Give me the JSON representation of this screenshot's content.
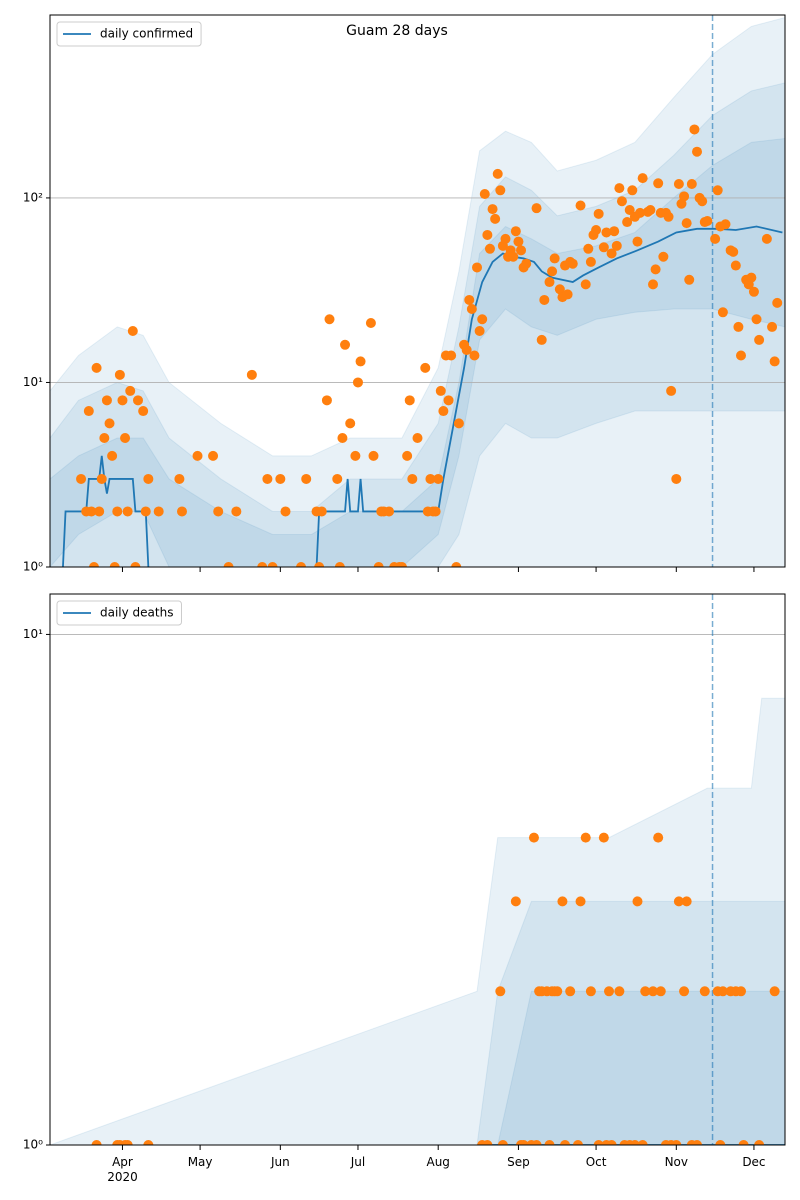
{
  "chart_data": [
    {
      "type": "line",
      "title": "Guam 28 days",
      "log_y": true,
      "grid": true,
      "legend": "upper left",
      "xlim": [
        64,
        348
      ],
      "ylim": [
        1,
        980
      ],
      "yticks": [
        {
          "value": 1,
          "label": "10⁰"
        },
        {
          "value": 10,
          "label": "10¹"
        },
        {
          "value": 100,
          "label": "10²"
        }
      ],
      "vline": 320,
      "bands": {
        "color": "#1f77b4",
        "opacity": 0.1,
        "x": [
          64,
          75,
          90,
          100,
          110,
          130,
          150,
          165,
          180,
          200,
          214,
          222,
          230,
          240,
          250,
          260,
          275,
          290,
          305,
          320,
          335,
          348
        ],
        "upper": [
          [
            9,
            14,
            20,
            18,
            10,
            6,
            4,
            4,
            5,
            5,
            12,
            40,
            180,
            230,
            200,
            140,
            160,
            200,
            350,
            600,
            850,
            950
          ],
          [
            5,
            8,
            10,
            9,
            5,
            3,
            2,
            2,
            3,
            3,
            6,
            20,
            90,
            130,
            110,
            80,
            90,
            110,
            170,
            280,
            380,
            420
          ],
          [
            3,
            4,
            5,
            5,
            3,
            2,
            1.5,
            1.5,
            2,
            2,
            3,
            10,
            50,
            70,
            60,
            50,
            55,
            65,
            100,
            150,
            200,
            210
          ]
        ],
        "lower": [
          [
            1,
            1,
            1,
            1,
            1,
            1,
            1,
            1,
            1,
            1,
            1,
            1,
            1,
            1,
            1,
            1,
            1,
            1,
            1,
            1,
            1,
            1
          ],
          [
            1,
            1,
            1,
            1,
            1,
            1,
            1,
            1,
            1,
            1,
            1,
            1.5,
            4,
            6,
            5,
            5,
            6,
            7,
            7,
            7,
            7,
            7
          ],
          [
            1,
            1.5,
            2,
            2,
            1,
            1,
            1,
            1,
            1,
            1,
            1.5,
            4,
            17,
            25,
            20,
            18,
            22,
            24,
            25,
            25,
            22,
            20
          ]
        ]
      },
      "series": [
        {
          "name": "daily confirmed",
          "color": "#1f77b4",
          "x": [
            69,
            70,
            78,
            79,
            83,
            84,
            85,
            86,
            87,
            96,
            97,
            101,
            102,
            103,
            167,
            168,
            178,
            179,
            180,
            183,
            184,
            185,
            214,
            216,
            220,
            224,
            227,
            231,
            235,
            239,
            243,
            247,
            251,
            254,
            258,
            266,
            270,
            276,
            283,
            291,
            299,
            306,
            314,
            322,
            329,
            337,
            347
          ],
          "values": [
            1,
            2,
            2,
            3,
            3,
            4,
            3,
            2.5,
            3,
            3,
            2,
            2,
            1,
            null,
            1,
            2,
            2,
            3,
            2,
            2,
            3,
            2,
            2,
            3,
            6,
            12,
            22,
            35,
            45,
            50,
            48,
            47,
            45,
            40,
            37,
            35,
            38,
            42,
            47,
            52,
            58,
            65,
            68,
            68,
            67,
            70,
            65
          ]
        }
      ],
      "scatter": {
        "color": "#ff7f0e",
        "x": [
          76,
          78,
          79,
          80,
          81,
          82,
          83,
          84,
          85,
          86,
          87,
          88,
          89,
          90,
          91,
          92,
          93,
          94,
          95,
          96,
          97,
          98,
          100,
          101,
          102,
          106,
          114,
          115,
          121,
          127,
          129,
          133,
          136,
          142,
          146,
          148,
          150,
          153,
          155,
          161,
          163,
          167,
          168,
          169,
          171,
          172,
          175,
          176,
          177,
          178,
          180,
          182,
          183,
          184,
          188,
          189,
          191,
          192,
          193,
          195,
          197,
          199,
          200,
          202,
          203,
          204,
          206,
          209,
          210,
          211,
          212,
          213,
          214,
          215,
          216,
          217,
          218,
          219,
          221,
          222,
          224,
          225,
          226,
          227,
          228,
          229,
          230,
          231,
          232,
          233,
          234,
          235,
          236,
          237,
          238,
          239,
          240,
          241,
          242,
          243,
          244,
          245,
          246,
          247,
          248,
          252,
          254,
          255,
          257,
          258,
          259,
          261,
          262,
          263,
          264,
          265,
          266,
          269,
          271,
          272,
          273,
          274,
          275,
          276,
          278,
          279,
          281,
          282,
          283,
          284,
          285,
          287,
          288,
          289,
          290,
          291,
          292,
          293,
          295,
          296,
          297,
          298,
          299,
          300,
          301,
          302,
          303,
          304,
          306,
          307,
          308,
          309,
          310,
          311,
          312,
          313,
          314,
          315,
          316,
          317,
          318,
          321,
          322,
          323,
          324,
          325,
          327,
          328,
          329,
          330,
          331,
          333,
          334,
          335,
          336,
          337,
          338,
          341,
          343,
          344,
          345
        ],
        "values": [
          3,
          2,
          7,
          2,
          1,
          12,
          2,
          3,
          5,
          8,
          6,
          4,
          1,
          2,
          11,
          8,
          5,
          2,
          9,
          19,
          1,
          8,
          7,
          2,
          3,
          2,
          3,
          2,
          4,
          4,
          2,
          1,
          2,
          11,
          1,
          3,
          1,
          3,
          2,
          1,
          3,
          2,
          1,
          2,
          8,
          22,
          3,
          1,
          5,
          16,
          6,
          4,
          10,
          13,
          21,
          4,
          1,
          2,
          2,
          2,
          1,
          1,
          1,
          4,
          8,
          3,
          5,
          12,
          2,
          3,
          2,
          2,
          3,
          9,
          7,
          14,
          8,
          14,
          1,
          6,
          16,
          15,
          28,
          25,
          14,
          42,
          19,
          22,
          105,
          63,
          53,
          87,
          77,
          135,
          110,
          55,
          60,
          48,
          52,
          48,
          66,
          58,
          52,
          42,
          44,
          88,
          17,
          28,
          35,
          40,
          47,
          32,
          29,
          43,
          30,
          45,
          44,
          91,
          34,
          53,
          45,
          63,
          67,
          82,
          54,
          65,
          50,
          66,
          55,
          113,
          96,
          74,
          86,
          110,
          79,
          58,
          83,
          128,
          84,
          86,
          34,
          41,
          120,
          83,
          48,
          83,
          79,
          9,
          3,
          119,
          93,
          102,
          73,
          36,
          119,
          235,
          178,
          100,
          96,
          74,
          75,
          60,
          110,
          70,
          24,
          72,
          52,
          51,
          43,
          20,
          14,
          36,
          34,
          37,
          31,
          22,
          17,
          60,
          20,
          13,
          27
        ]
      }
    },
    {
      "type": "line",
      "log_y": true,
      "grid": true,
      "legend": "upper left",
      "xlim": [
        64,
        348
      ],
      "ylim": [
        1,
        12
      ],
      "yticks": [
        {
          "value": 1,
          "label": "10⁰"
        },
        {
          "value": 10,
          "label": "10¹"
        }
      ],
      "xticks": [
        {
          "value": 92,
          "label": "Apr\n2020"
        },
        {
          "value": 122,
          "label": "May"
        },
        {
          "value": 153,
          "label": "Jun"
        },
        {
          "value": 183,
          "label": "Jul"
        },
        {
          "value": 214,
          "label": "Aug"
        },
        {
          "value": 245,
          "label": "Sep"
        },
        {
          "value": 275,
          "label": "Oct"
        },
        {
          "value": 306,
          "label": "Nov"
        },
        {
          "value": 336,
          "label": "Dec"
        }
      ],
      "vline": 320,
      "bands": {
        "color": "#1f77b4",
        "opacity": 0.1,
        "x": [
          64,
          229,
          237,
          250,
          280,
          318,
          335,
          339,
          348
        ],
        "upper": [
          [
            1,
            2,
            4,
            4,
            4,
            5,
            5,
            7.5,
            7.5
          ],
          [
            1,
            1,
            2,
            3,
            3,
            3,
            3,
            3,
            3
          ],
          [
            1,
            1,
            1,
            2,
            2,
            2,
            2,
            2,
            2
          ]
        ],
        "lower": [
          [
            1,
            1,
            1,
            1,
            1,
            1,
            1,
            1,
            1
          ],
          [
            1,
            1,
            1,
            1,
            1,
            1,
            1,
            1,
            1
          ],
          [
            1,
            1,
            1,
            1,
            1,
            1,
            1,
            1,
            1
          ]
        ]
      },
      "series": [
        {
          "name": "daily deaths",
          "color": "#1f77b4",
          "x": [
            230,
            348
          ],
          "values": [
            1,
            1
          ]
        }
      ],
      "scatter": {
        "color": "#ff7f0e",
        "x": [
          82,
          90,
          91,
          93,
          94,
          102,
          231,
          233,
          238,
          239,
          244,
          246,
          247,
          250,
          251,
          252,
          253,
          254,
          256,
          257,
          258,
          259,
          260,
          262,
          263,
          265,
          268,
          269,
          271,
          273,
          276,
          278,
          279,
          280,
          281,
          284,
          286,
          288,
          290,
          291,
          293,
          294,
          297,
          299,
          300,
          302,
          304,
          306,
          307,
          309,
          310,
          312,
          314,
          317,
          322,
          323,
          324,
          327,
          329,
          331,
          332,
          338,
          344
        ],
        "values": [
          1,
          1,
          1,
          1,
          1,
          1,
          1,
          1,
          2,
          1,
          3,
          1,
          1,
          1,
          4,
          1,
          2,
          2,
          2,
          1,
          2,
          2,
          2,
          3,
          1,
          2,
          1,
          3,
          4,
          2,
          1,
          4,
          1,
          2,
          1,
          2,
          1,
          1,
          1,
          3,
          1,
          2,
          2,
          4,
          2,
          1,
          1,
          1,
          3,
          2,
          3,
          1,
          1,
          2,
          2,
          1,
          2,
          2,
          2,
          2,
          1,
          1,
          2
        ]
      }
    }
  ]
}
